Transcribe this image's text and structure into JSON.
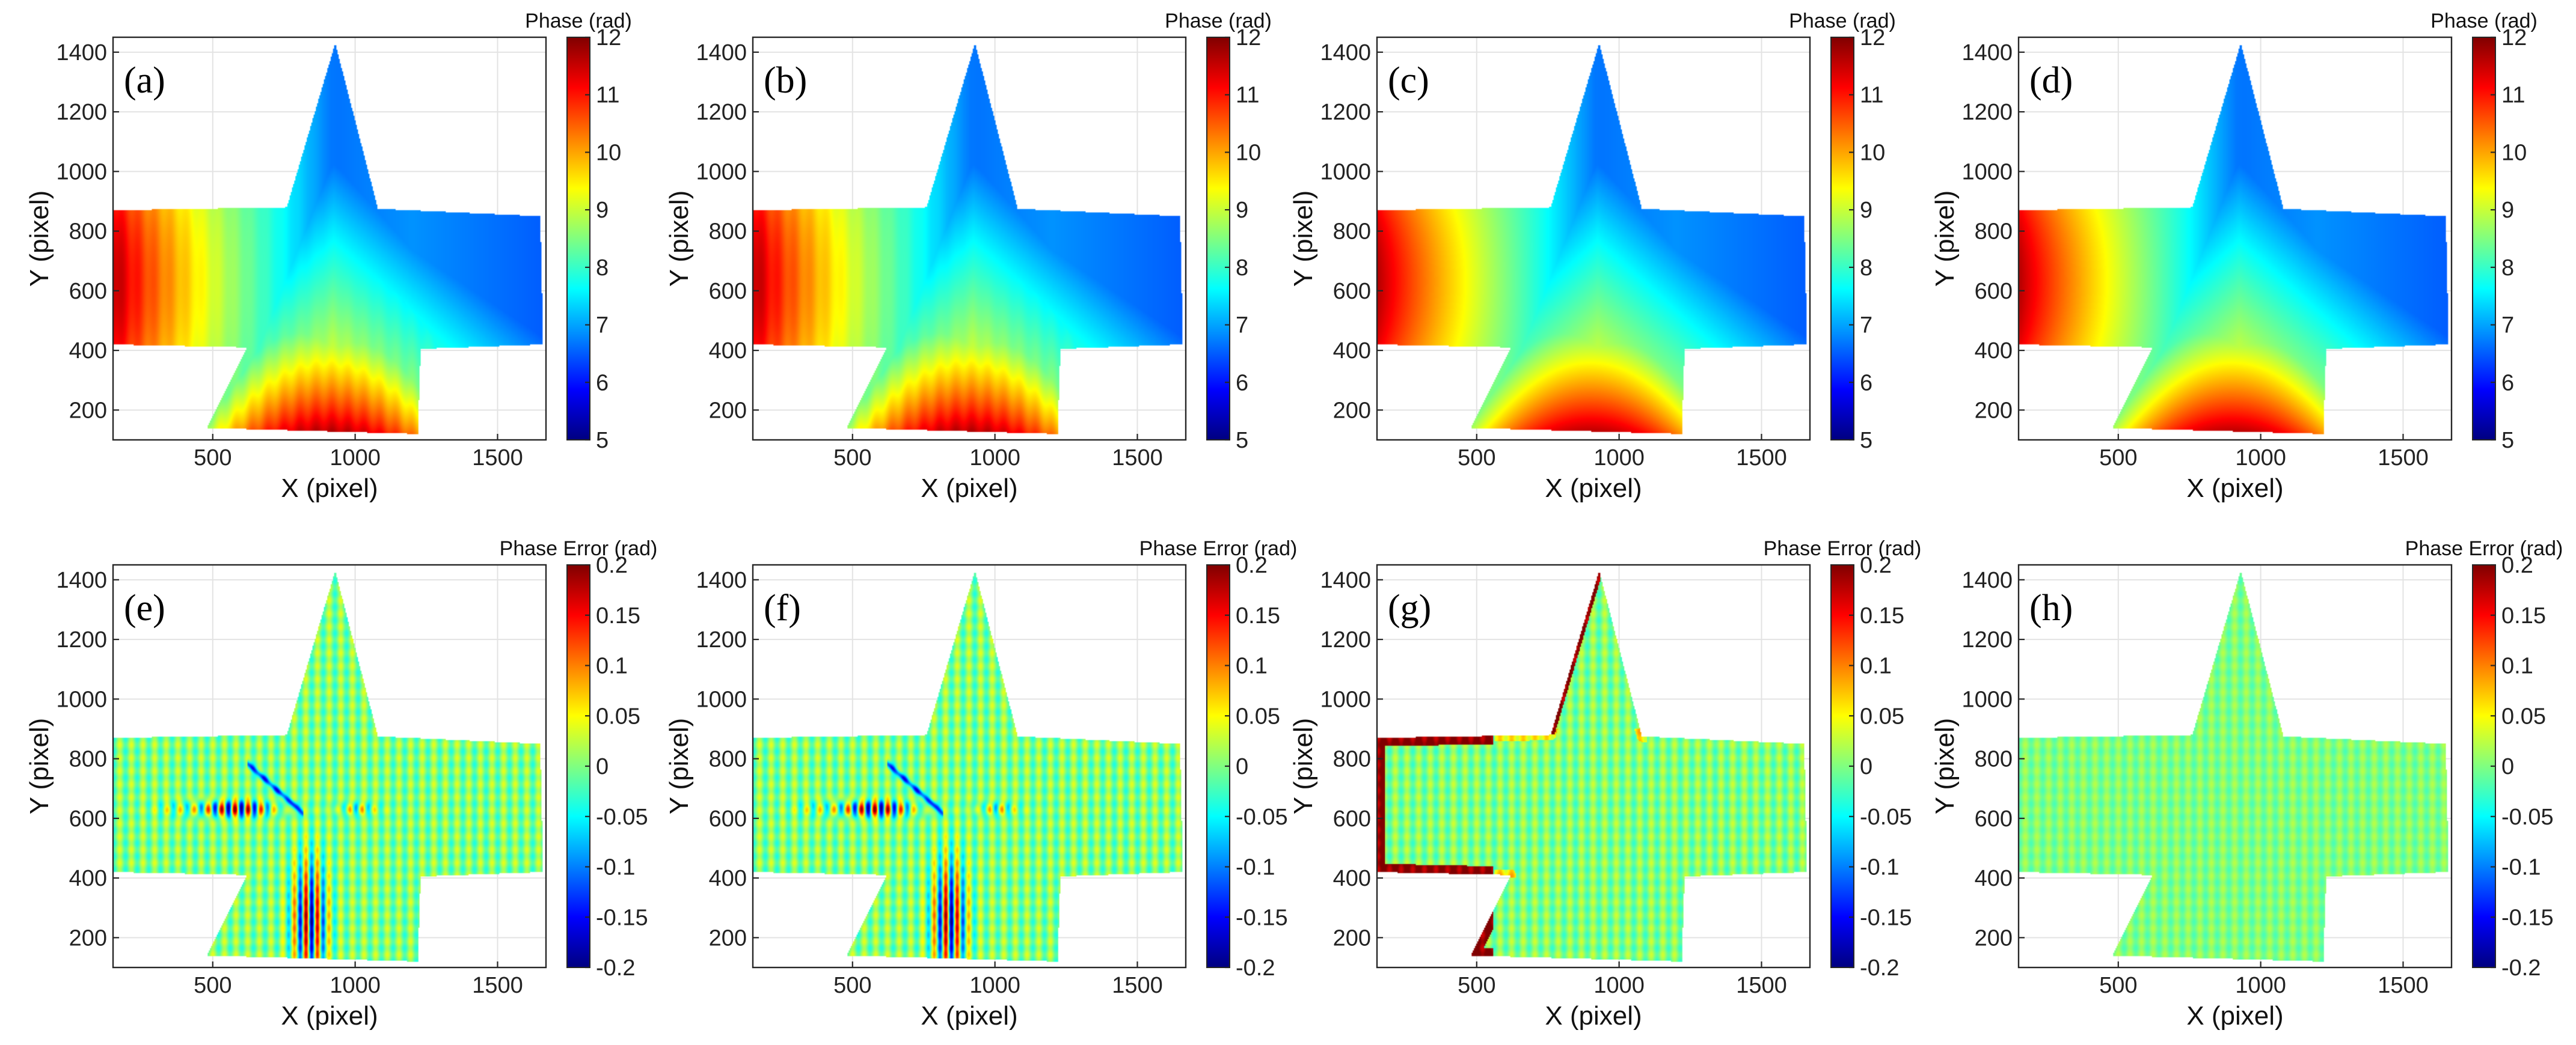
{
  "chart_data": [
    {
      "type": "heatmap",
      "panel_label": "(a)",
      "colorbar_title": "Phase (rad)",
      "clim": [
        5,
        12
      ],
      "colorbar_ticks": [
        "5",
        "6",
        "7",
        "8",
        "9",
        "10",
        "11",
        "12"
      ],
      "xlabel": "X (pixel)",
      "ylabel": "Y (pixel)",
      "xlim": [
        150,
        1670
      ],
      "ylim": [
        100,
        1450
      ],
      "xticks": [
        "500",
        "1000",
        "1500"
      ],
      "yticks": [
        "200",
        "400",
        "600",
        "800",
        "1000",
        "1200",
        "1400"
      ],
      "field": "phase",
      "grid": true
    },
    {
      "type": "heatmap",
      "panel_label": "(b)",
      "colorbar_title": "Phase (rad)",
      "clim": [
        5,
        12
      ],
      "colorbar_ticks": [
        "5",
        "6",
        "7",
        "8",
        "9",
        "10",
        "11",
        "12"
      ],
      "xlabel": "X (pixel)",
      "ylabel": "Y (pixel)",
      "xlim": [
        150,
        1670
      ],
      "ylim": [
        100,
        1450
      ],
      "xticks": [
        "500",
        "1000",
        "1500"
      ],
      "yticks": [
        "200",
        "400",
        "600",
        "800",
        "1000",
        "1200",
        "1400"
      ],
      "field": "phase",
      "grid": true
    },
    {
      "type": "heatmap",
      "panel_label": "(c)",
      "colorbar_title": "Phase (rad)",
      "clim": [
        5,
        12
      ],
      "colorbar_ticks": [
        "5",
        "6",
        "7",
        "8",
        "9",
        "10",
        "11",
        "12"
      ],
      "xlabel": "X (pixel)",
      "ylabel": "Y (pixel)",
      "xlim": [
        150,
        1670
      ],
      "ylim": [
        100,
        1450
      ],
      "xticks": [
        "500",
        "1000",
        "1500"
      ],
      "yticks": [
        "200",
        "400",
        "600",
        "800",
        "1000",
        "1200",
        "1400"
      ],
      "field": "phase",
      "grid": true
    },
    {
      "type": "heatmap",
      "panel_label": "(d)",
      "colorbar_title": "Phase (rad)",
      "clim": [
        5,
        12
      ],
      "colorbar_ticks": [
        "5",
        "6",
        "7",
        "8",
        "9",
        "10",
        "11",
        "12"
      ],
      "xlabel": "X (pixel)",
      "ylabel": "Y (pixel)",
      "xlim": [
        150,
        1670
      ],
      "ylim": [
        100,
        1450
      ],
      "xticks": [
        "500",
        "1000",
        "1500"
      ],
      "yticks": [
        "200",
        "400",
        "600",
        "800",
        "1000",
        "1200",
        "1400"
      ],
      "field": "phase",
      "grid": true
    },
    {
      "type": "heatmap",
      "panel_label": "(e)",
      "colorbar_title": "Phase Error (rad)",
      "clim": [
        -0.2,
        0.2
      ],
      "colorbar_ticks": [
        "-0.2",
        "-0.15",
        "-0.1",
        "-0.05",
        "0",
        "0.05",
        "0.1",
        "0.15",
        "0.2"
      ],
      "xlabel": "X (pixel)",
      "ylabel": "Y (pixel)",
      "xlim": [
        150,
        1670
      ],
      "ylim": [
        100,
        1450
      ],
      "xticks": [
        "500",
        "1000",
        "1500"
      ],
      "yticks": [
        "200",
        "400",
        "600",
        "800",
        "1000",
        "1200",
        "1400"
      ],
      "field": "error",
      "error_pattern": "strong",
      "grid": true
    },
    {
      "type": "heatmap",
      "panel_label": "(f)",
      "colorbar_title": "Phase Error (rad)",
      "clim": [
        -0.2,
        0.2
      ],
      "colorbar_ticks": [
        "-0.2",
        "-0.15",
        "-0.1",
        "-0.05",
        "0",
        "0.05",
        "0.1",
        "0.15",
        "0.2"
      ],
      "xlabel": "X (pixel)",
      "ylabel": "Y (pixel)",
      "xlim": [
        150,
        1670
      ],
      "ylim": [
        100,
        1450
      ],
      "xticks": [
        "500",
        "1000",
        "1500"
      ],
      "yticks": [
        "200",
        "400",
        "600",
        "800",
        "1000",
        "1200",
        "1400"
      ],
      "field": "error",
      "error_pattern": "strong",
      "grid": true
    },
    {
      "type": "heatmap",
      "panel_label": "(g)",
      "colorbar_title": "Phase Error (rad)",
      "clim": [
        -0.2,
        0.2
      ],
      "colorbar_ticks": [
        "-0.2",
        "-0.15",
        "-0.1",
        "-0.05",
        "0",
        "0.05",
        "0.1",
        "0.15",
        "0.2"
      ],
      "xlabel": "X (pixel)",
      "ylabel": "Y (pixel)",
      "xlim": [
        150,
        1670
      ],
      "ylim": [
        100,
        1450
      ],
      "xticks": [
        "500",
        "1000",
        "1500"
      ],
      "yticks": [
        "200",
        "400",
        "600",
        "800",
        "1000",
        "1200",
        "1400"
      ],
      "field": "error",
      "error_pattern": "edge",
      "grid": true
    },
    {
      "type": "heatmap",
      "panel_label": "(h)",
      "colorbar_title": "Phase Error (rad)",
      "clim": [
        -0.2,
        0.2
      ],
      "colorbar_ticks": [
        "-0.2",
        "-0.15",
        "-0.1",
        "-0.05",
        "0",
        "0.05",
        "0.1",
        "0.15",
        "0.2"
      ],
      "xlabel": "X (pixel)",
      "ylabel": "Y (pixel)",
      "xlim": [
        150,
        1670
      ],
      "ylim": [
        100,
        1450
      ],
      "xticks": [
        "500",
        "1000",
        "1500"
      ],
      "yticks": [
        "200",
        "400",
        "600",
        "800",
        "1000",
        "1200",
        "1400"
      ],
      "field": "error",
      "error_pattern": "weak",
      "grid": true
    }
  ],
  "shape_outline": {
    "description_units": "data pixels",
    "vertices": [
      [
        150,
        870
      ],
      [
        760,
        880
      ],
      [
        930,
        1430
      ],
      [
        1080,
        875
      ],
      [
        1650,
        850
      ],
      [
        1660,
        420
      ],
      [
        1230,
        405
      ],
      [
        1220,
        120
      ],
      [
        480,
        140
      ],
      [
        620,
        410
      ],
      [
        150,
        420
      ]
    ]
  }
}
